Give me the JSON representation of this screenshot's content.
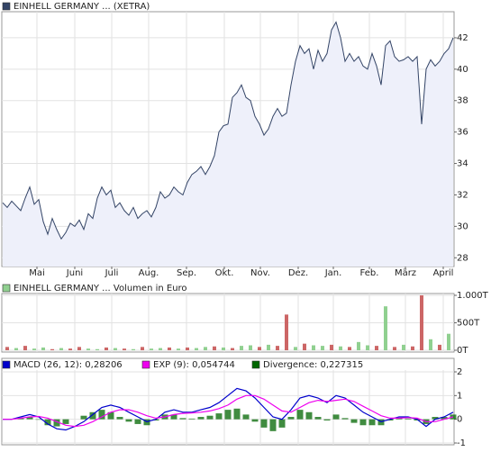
{
  "chart_data": [
    {
      "type": "area",
      "legend": "EINHELL GERMANY ... (XETRA)",
      "color": "#334466",
      "fill": "#eef0fa",
      "values": [
        31.5,
        31.2,
        31.6,
        31.3,
        31.0,
        31.8,
        32.5,
        31.4,
        31.7,
        30.3,
        29.5,
        30.5,
        29.8,
        29.2,
        29.6,
        30.2,
        30.0,
        30.4,
        29.8,
        30.8,
        30.5,
        31.8,
        32.5,
        32.0,
        32.3,
        31.2,
        31.5,
        31.0,
        30.7,
        31.2,
        30.5,
        30.8,
        31.0,
        30.6,
        31.2,
        32.2,
        31.8,
        32.0,
        32.5,
        32.2,
        32.0,
        32.8,
        33.3,
        33.5,
        33.8,
        33.3,
        33.8,
        34.5,
        36.0,
        36.4,
        36.5,
        38.2,
        38.5,
        39.0,
        38.2,
        38.0,
        37.0,
        36.5,
        35.8,
        36.2,
        37.0,
        37.5,
        37.0,
        37.2,
        39.0,
        40.5,
        41.5,
        41.0,
        41.3,
        40.0,
        41.2,
        40.5,
        41.0,
        42.5,
        43.0,
        42.0,
        40.5,
        41.0,
        40.5,
        40.8,
        40.2,
        40.0,
        41.0,
        40.2,
        39.0,
        41.5,
        41.8,
        40.8,
        40.5,
        40.6,
        40.8,
        40.5,
        40.8,
        36.5,
        40.0,
        40.6,
        40.2,
        40.5,
        41.0,
        41.3,
        42.0
      ],
      "xlim": [
        0,
        100
      ],
      "xticks": [
        {
          "value": 7.6,
          "label": "Mai"
        },
        {
          "value": 16,
          "label": "Juni"
        },
        {
          "value": 24.2,
          "label": "Juli"
        },
        {
          "value": 32.4,
          "label": "Aug."
        },
        {
          "value": 40.8,
          "label": "Sep."
        },
        {
          "value": 49.2,
          "label": "Okt."
        },
        {
          "value": 57.2,
          "label": "Nov."
        },
        {
          "value": 65.6,
          "label": "Dez."
        },
        {
          "value": 73.4,
          "label": "Jan."
        },
        {
          "value": 81.4,
          "label": "Feb."
        },
        {
          "value": 89.4,
          "label": "März"
        },
        {
          "value": 97.8,
          "label": "April"
        }
      ],
      "ylim": [
        27.5,
        43.6
      ],
      "yticks": [
        28,
        30,
        32,
        34,
        36,
        38,
        40,
        42
      ],
      "grid": true
    },
    {
      "type": "bar",
      "legend": "EINHELL GERMANY ... Volumen in Euro",
      "legend_color": "#90d090",
      "values": [
        60,
        40,
        80,
        30,
        50,
        20,
        40,
        30,
        60,
        30,
        20,
        50,
        40,
        30,
        20,
        60,
        30,
        40,
        50,
        30,
        50,
        40,
        60,
        70,
        50,
        40,
        80,
        90,
        60,
        100,
        80,
        650,
        60,
        120,
        90,
        80,
        100,
        70,
        60,
        150,
        90,
        80,
        800,
        60,
        100,
        70,
        1000,
        200,
        100,
        300
      ],
      "colors": [
        "#cc6666",
        "#90d090",
        "#cc6666",
        "#90d090",
        "#90d090",
        "#cc6666",
        "#90d090",
        "#cc6666",
        "#cc6666",
        "#90d090",
        "#90d090",
        "#cc6666",
        "#90d090",
        "#cc6666",
        "#90d090",
        "#cc6666",
        "#90d090",
        "#90d090",
        "#cc6666",
        "#90d090",
        "#cc6666",
        "#90d090",
        "#90d090",
        "#cc6666",
        "#90d090",
        "#cc6666",
        "#90d090",
        "#90d090",
        "#cc6666",
        "#90d090",
        "#cc6666",
        "#cc6666",
        "#90d090",
        "#cc6666",
        "#90d090",
        "#90d090",
        "#cc6666",
        "#90d090",
        "#cc6666",
        "#90d090",
        "#90d090",
        "#cc6666",
        "#90d090",
        "#cc6666",
        "#90d090",
        "#cc6666",
        "#cc6666",
        "#90d090",
        "#cc6666",
        "#90d090"
      ],
      "xlim": [
        0,
        50
      ],
      "ylim": [
        0,
        1000
      ],
      "yticks": [
        {
          "value": 1000,
          "label": "1.000T"
        },
        {
          "value": 500,
          "label": "500T"
        },
        {
          "value": 0,
          "label": "0T"
        }
      ]
    },
    {
      "type": "macd",
      "series": [
        {
          "name": "MACD (26, 12): 0,28206",
          "color": "#0000cc",
          "kind": "line",
          "values": [
            0.0,
            0.0,
            0.1,
            0.2,
            0.1,
            -0.2,
            -0.4,
            -0.45,
            -0.3,
            -0.1,
            0.2,
            0.5,
            0.6,
            0.5,
            0.3,
            0.1,
            -0.1,
            0.0,
            0.3,
            0.4,
            0.3,
            0.3,
            0.4,
            0.5,
            0.7,
            1.0,
            1.3,
            1.2,
            0.9,
            0.5,
            0.1,
            0.0,
            0.4,
            0.9,
            1.0,
            0.9,
            0.7,
            1.0,
            0.9,
            0.6,
            0.3,
            0.1,
            -0.1,
            0.0,
            0.1,
            0.1,
            0.0,
            -0.3,
            0.0,
            0.1,
            0.3
          ]
        },
        {
          "name": "EXP (9): 0,054744",
          "color": "#ee00ee",
          "kind": "line",
          "values": [
            0.0,
            0.0,
            0.05,
            0.1,
            0.12,
            0.05,
            -0.1,
            -0.25,
            -0.3,
            -0.25,
            -0.1,
            0.1,
            0.3,
            0.4,
            0.4,
            0.3,
            0.15,
            0.05,
            0.1,
            0.2,
            0.25,
            0.27,
            0.3,
            0.35,
            0.45,
            0.6,
            0.85,
            1.0,
            1.0,
            0.85,
            0.6,
            0.35,
            0.3,
            0.5,
            0.7,
            0.8,
            0.75,
            0.8,
            0.85,
            0.75,
            0.55,
            0.35,
            0.15,
            0.05,
            0.05,
            0.07,
            0.05,
            -0.1,
            -0.1,
            0.0,
            0.1
          ]
        },
        {
          "name": "Divergence: 0,227315",
          "color": "#006600",
          "kind": "bar",
          "values": [
            0.0,
            0.0,
            0.05,
            0.1,
            -0.02,
            -0.25,
            -0.3,
            -0.2,
            0.0,
            0.15,
            0.3,
            0.4,
            0.3,
            0.1,
            -0.1,
            -0.2,
            -0.25,
            -0.05,
            0.2,
            0.2,
            0.05,
            0.03,
            0.1,
            0.15,
            0.25,
            0.4,
            0.45,
            0.2,
            -0.1,
            -0.35,
            -0.5,
            -0.35,
            0.1,
            0.4,
            0.3,
            0.1,
            -0.05,
            0.2,
            0.05,
            -0.15,
            -0.25,
            -0.25,
            -0.25,
            -0.05,
            0.05,
            0.03,
            -0.05,
            -0.2,
            0.1,
            0.1,
            0.2
          ]
        }
      ],
      "xlim": [
        0,
        50
      ],
      "ylim": [
        -1,
        2
      ],
      "yticks": [
        -1,
        0,
        1,
        2
      ]
    }
  ]
}
